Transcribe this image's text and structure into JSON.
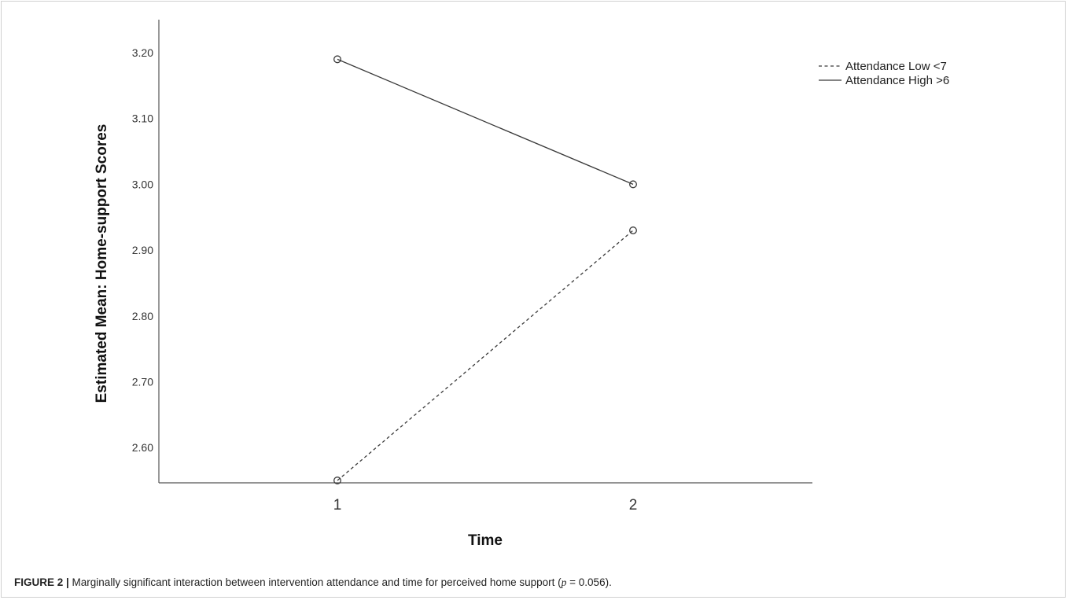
{
  "chart_data": {
    "type": "line",
    "xlabel": "Time",
    "ylabel": "Estimated Mean: Home-support Scores",
    "categories": [
      "1",
      "2"
    ],
    "y_ticks": [
      "2.60",
      "2.70",
      "2.80",
      "2.90",
      "3.00",
      "3.10",
      "3.20"
    ],
    "ylim": [
      2.525,
      3.245
    ],
    "grid": false,
    "legend_position": "top-right",
    "series": [
      {
        "name": "Attendance Low <7",
        "values": [
          2.55,
          2.93
        ],
        "line_style": "dashed",
        "color": "#3a3a3a"
      },
      {
        "name": "Attendance High >6",
        "values": [
          3.19,
          3.0
        ],
        "line_style": "solid",
        "color": "#3a3a3a"
      }
    ]
  },
  "caption": {
    "label": "FIGURE 2 |",
    "text_before": " Marginally significant interaction between intervention attendance and time for perceived home support (",
    "p_symbol": "p",
    "text_after": " = 0.056)."
  }
}
